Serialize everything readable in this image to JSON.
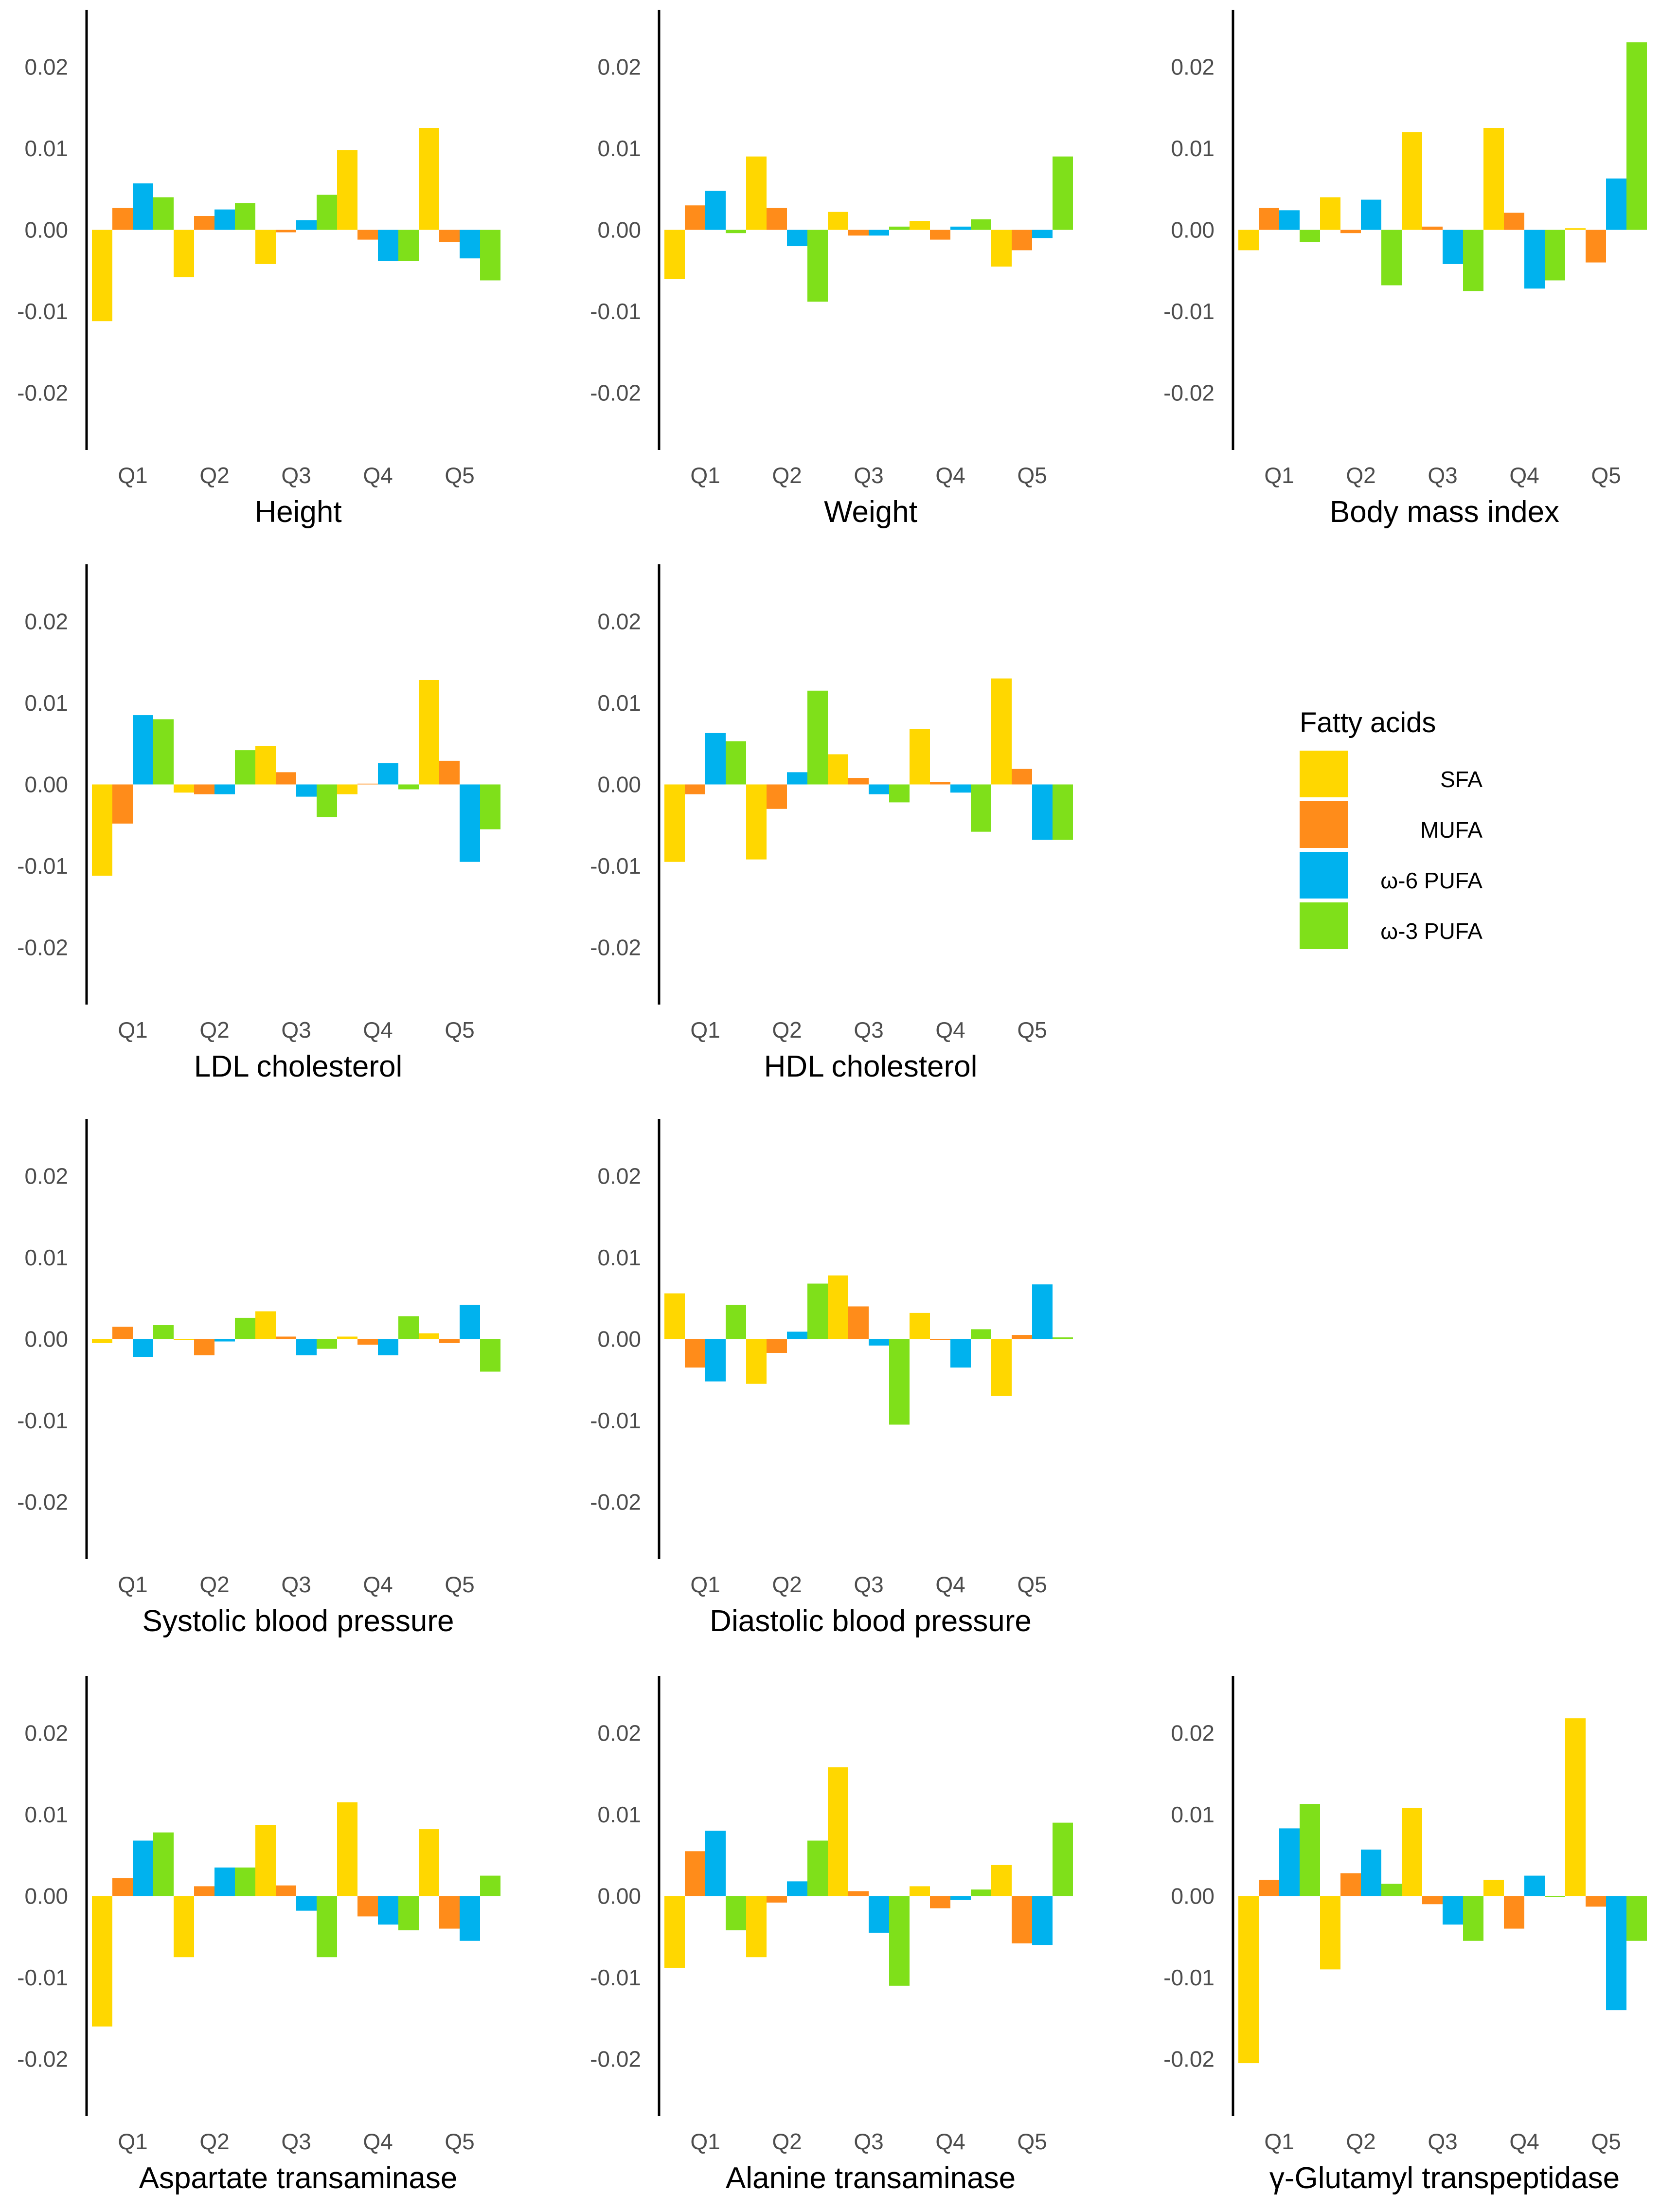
{
  "colors": {
    "SFA": "#FFD700",
    "MUFA": "#FF8C1A",
    "w6PUFA": "#00B2EE",
    "w3PUFA": "#7FE01A"
  },
  "legend": {
    "title": "Fatty acids",
    "items": [
      {
        "label": "SFA",
        "color": "#FFD700"
      },
      {
        "label": "MUFA",
        "color": "#FF8C1A"
      },
      {
        "label": "ω-6 PUFA",
        "color": "#00B2EE"
      },
      {
        "label": "ω-3 PUFA",
        "color": "#7FE01A"
      }
    ]
  },
  "chart_data": [
    {
      "type": "bar",
      "title": "Height",
      "categories": [
        "Q1",
        "Q2",
        "Q3",
        "Q4",
        "Q5"
      ],
      "ylim": [
        -0.027,
        0.027
      ],
      "yticks": [
        -0.02,
        -0.01,
        0.0,
        0.01,
        0.02
      ],
      "ytick_labels": [
        "-0.02",
        "-0.01",
        "0.00",
        "0.01",
        "0.02"
      ],
      "series": [
        {
          "name": "SFA",
          "values": [
            -0.0112,
            -0.0058,
            -0.0042,
            0.0098,
            0.0125
          ]
        },
        {
          "name": "MUFA",
          "values": [
            0.0027,
            0.0017,
            -0.0003,
            -0.0012,
            -0.0015
          ]
        },
        {
          "name": "ω-6 PUFA",
          "values": [
            0.0057,
            0.0025,
            0.0012,
            -0.0038,
            -0.0035
          ]
        },
        {
          "name": "ω-3 PUFA",
          "values": [
            0.004,
            0.0033,
            0.0043,
            -0.0038,
            -0.0062
          ]
        }
      ]
    },
    {
      "type": "bar",
      "title": "Weight",
      "categories": [
        "Q1",
        "Q2",
        "Q3",
        "Q4",
        "Q5"
      ],
      "ylim": [
        -0.027,
        0.027
      ],
      "yticks": [
        -0.02,
        -0.01,
        0.0,
        0.01,
        0.02
      ],
      "ytick_labels": [
        "-0.02",
        "-0.01",
        "0.00",
        "0.01",
        "0.02"
      ],
      "series": [
        {
          "name": "SFA",
          "values": [
            -0.006,
            0.009,
            0.0022,
            0.0011,
            -0.0045
          ]
        },
        {
          "name": "MUFA",
          "values": [
            0.003,
            0.0027,
            -0.0007,
            -0.0012,
            -0.0025
          ]
        },
        {
          "name": "ω-6 PUFA",
          "values": [
            0.0048,
            -0.002,
            -0.0007,
            0.0004,
            -0.001
          ]
        },
        {
          "name": "ω-3 PUFA",
          "values": [
            -0.0004,
            -0.0088,
            0.0004,
            0.0013,
            0.009
          ]
        }
      ]
    },
    {
      "type": "bar",
      "title": "Body mass index",
      "categories": [
        "Q1",
        "Q2",
        "Q3",
        "Q4",
        "Q5"
      ],
      "ylim": [
        -0.027,
        0.027
      ],
      "yticks": [
        -0.02,
        -0.01,
        0.0,
        0.01,
        0.02
      ],
      "ytick_labels": [
        "-0.02",
        "-0.01",
        "0.00",
        "0.01",
        "0.02"
      ],
      "series": [
        {
          "name": "SFA",
          "values": [
            -0.0025,
            0.004,
            0.012,
            0.0125,
            0.0002
          ]
        },
        {
          "name": "MUFA",
          "values": [
            0.0027,
            -0.0004,
            0.0004,
            0.0021,
            -0.004
          ]
        },
        {
          "name": "ω-6 PUFA",
          "values": [
            0.0024,
            0.0037,
            -0.0042,
            -0.0072,
            0.0063
          ]
        },
        {
          "name": "ω-3 PUFA",
          "values": [
            -0.0015,
            -0.0068,
            -0.0075,
            -0.0062,
            0.023
          ]
        }
      ]
    },
    {
      "type": "bar",
      "title": "LDL cholesterol",
      "categories": [
        "Q1",
        "Q2",
        "Q3",
        "Q4",
        "Q5"
      ],
      "ylim": [
        -0.027,
        0.027
      ],
      "yticks": [
        -0.02,
        -0.01,
        0.0,
        0.01,
        0.02
      ],
      "ytick_labels": [
        "-0.02",
        "-0.01",
        "0.00",
        "0.01",
        "0.02"
      ],
      "series": [
        {
          "name": "SFA",
          "values": [
            -0.0112,
            -0.001,
            0.0047,
            -0.0012,
            0.0128
          ]
        },
        {
          "name": "MUFA",
          "values": [
            -0.0048,
            -0.0012,
            0.0015,
            0.0001,
            0.0029
          ]
        },
        {
          "name": "ω-6 PUFA",
          "values": [
            0.0085,
            -0.0012,
            -0.0015,
            0.0026,
            -0.0095
          ]
        },
        {
          "name": "ω-3 PUFA",
          "values": [
            0.008,
            0.0042,
            -0.004,
            -0.0006,
            -0.0055
          ]
        }
      ]
    },
    {
      "type": "bar",
      "title": "HDL cholesterol",
      "categories": [
        "Q1",
        "Q2",
        "Q3",
        "Q4",
        "Q5"
      ],
      "ylim": [
        -0.027,
        0.027
      ],
      "yticks": [
        -0.02,
        -0.01,
        0.0,
        0.01,
        0.02
      ],
      "ytick_labels": [
        "-0.02",
        "-0.01",
        "0.00",
        "0.01",
        "0.02"
      ],
      "series": [
        {
          "name": "SFA",
          "values": [
            -0.0095,
            -0.0092,
            0.0037,
            0.0068,
            0.013
          ]
        },
        {
          "name": "MUFA",
          "values": [
            -0.0012,
            -0.003,
            0.0008,
            0.0003,
            0.0019
          ]
        },
        {
          "name": "ω-6 PUFA",
          "values": [
            0.0063,
            0.0015,
            -0.0012,
            -0.001,
            -0.0068
          ]
        },
        {
          "name": "ω-3 PUFA",
          "values": [
            0.0053,
            0.0115,
            -0.0022,
            -0.0058,
            -0.0068
          ]
        }
      ]
    },
    {
      "type": "bar",
      "title": "Systolic blood pressure",
      "categories": [
        "Q1",
        "Q2",
        "Q3",
        "Q4",
        "Q5"
      ],
      "ylim": [
        -0.027,
        0.027
      ],
      "yticks": [
        -0.02,
        -0.01,
        0.0,
        0.01,
        0.02
      ],
      "ytick_labels": [
        "-0.02",
        "-0.01",
        "0.00",
        "0.01",
        "0.02"
      ],
      "series": [
        {
          "name": "SFA",
          "values": [
            -0.0005,
            -0.0001,
            0.0034,
            0.0003,
            0.0007
          ]
        },
        {
          "name": "MUFA",
          "values": [
            0.0015,
            -0.002,
            0.0003,
            -0.0007,
            -0.0005
          ]
        },
        {
          "name": "ω-6 PUFA",
          "values": [
            -0.0022,
            -0.0003,
            -0.002,
            -0.002,
            0.0042
          ]
        },
        {
          "name": "ω-3 PUFA",
          "values": [
            0.0017,
            0.0026,
            -0.0012,
            0.0028,
            -0.004
          ]
        }
      ]
    },
    {
      "type": "bar",
      "title": "Diastolic blood pressure",
      "categories": [
        "Q1",
        "Q2",
        "Q3",
        "Q4",
        "Q5"
      ],
      "ylim": [
        -0.027,
        0.027
      ],
      "yticks": [
        -0.02,
        -0.01,
        0.0,
        0.01,
        0.02
      ],
      "ytick_labels": [
        "-0.02",
        "-0.01",
        "0.00",
        "0.01",
        "0.02"
      ],
      "series": [
        {
          "name": "SFA",
          "values": [
            0.0056,
            -0.0055,
            0.0078,
            0.0032,
            -0.007
          ]
        },
        {
          "name": "MUFA",
          "values": [
            -0.0035,
            -0.0017,
            0.004,
            -0.0001,
            0.0005
          ]
        },
        {
          "name": "ω-6 PUFA",
          "values": [
            -0.0052,
            0.0009,
            -0.0008,
            -0.0035,
            0.0067
          ]
        },
        {
          "name": "ω-3 PUFA",
          "values": [
            0.0042,
            0.0068,
            -0.0105,
            0.0012,
            0.0002
          ]
        }
      ]
    },
    {
      "type": "bar",
      "title": "Aspartate transaminase",
      "categories": [
        "Q1",
        "Q2",
        "Q3",
        "Q4",
        "Q5"
      ],
      "ylim": [
        -0.027,
        0.027
      ],
      "yticks": [
        -0.02,
        -0.01,
        0.0,
        0.01,
        0.02
      ],
      "ytick_labels": [
        "-0.02",
        "-0.01",
        "0.00",
        "0.01",
        "0.02"
      ],
      "series": [
        {
          "name": "SFA",
          "values": [
            -0.016,
            -0.0075,
            0.0087,
            0.0115,
            0.0082
          ]
        },
        {
          "name": "MUFA",
          "values": [
            0.0022,
            0.0012,
            0.0013,
            -0.0025,
            -0.004
          ]
        },
        {
          "name": "ω-6 PUFA",
          "values": [
            0.0068,
            0.0035,
            -0.0018,
            -0.0035,
            -0.0055
          ]
        },
        {
          "name": "ω-3 PUFA",
          "values": [
            0.0078,
            0.0035,
            -0.0075,
            -0.0042,
            0.0025
          ]
        }
      ]
    },
    {
      "type": "bar",
      "title": "Alanine transaminase",
      "categories": [
        "Q1",
        "Q2",
        "Q3",
        "Q4",
        "Q5"
      ],
      "ylim": [
        -0.027,
        0.027
      ],
      "yticks": [
        -0.02,
        -0.01,
        0.0,
        0.01,
        0.02
      ],
      "ytick_labels": [
        "-0.02",
        "-0.01",
        "0.00",
        "0.01",
        "0.02"
      ],
      "series": [
        {
          "name": "SFA",
          "values": [
            -0.0088,
            -0.0075,
            0.0158,
            0.0012,
            0.0038
          ]
        },
        {
          "name": "MUFA",
          "values": [
            0.0055,
            -0.0008,
            0.0006,
            -0.0015,
            -0.0058
          ]
        },
        {
          "name": "ω-6 PUFA",
          "values": [
            0.008,
            0.0018,
            -0.0045,
            -0.0005,
            -0.006
          ]
        },
        {
          "name": "ω-3 PUFA",
          "values": [
            -0.0042,
            0.0068,
            -0.011,
            0.0008,
            0.009
          ]
        }
      ]
    },
    {
      "type": "bar",
      "title": "γ-Glutamyl transpeptidase",
      "categories": [
        "Q1",
        "Q2",
        "Q3",
        "Q4",
        "Q5"
      ],
      "ylim": [
        -0.027,
        0.027
      ],
      "yticks": [
        -0.02,
        -0.01,
        0.0,
        0.01,
        0.02
      ],
      "ytick_labels": [
        "-0.02",
        "-0.01",
        "0.00",
        "0.01",
        "0.02"
      ],
      "series": [
        {
          "name": "SFA",
          "values": [
            -0.0205,
            -0.009,
            0.0108,
            0.002,
            0.0218
          ]
        },
        {
          "name": "MUFA",
          "values": [
            0.002,
            0.0028,
            -0.001,
            -0.004,
            -0.0013
          ]
        },
        {
          "name": "ω-6 PUFA",
          "values": [
            0.0083,
            0.0057,
            -0.0035,
            0.0025,
            -0.014
          ]
        },
        {
          "name": "ω-3 PUFA",
          "values": [
            0.0113,
            0.0015,
            -0.0055,
            0.0,
            -0.0055
          ]
        }
      ]
    }
  ]
}
